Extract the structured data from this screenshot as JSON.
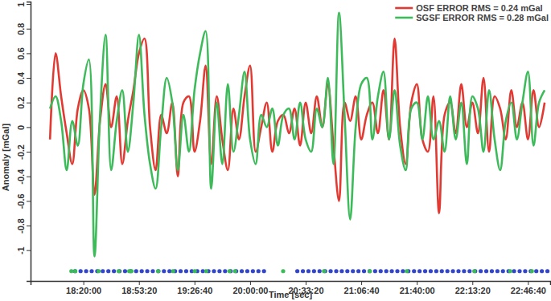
{
  "chart_data": {
    "type": "line",
    "xlabel": "Time [sec]",
    "ylabel": "Anomaly [mGal]",
    "xlim": [
      64100,
      82800
    ],
    "xticks": [
      {
        "value": 66000,
        "label": "18:20:00"
      },
      {
        "value": 68000,
        "label": "18:53:20"
      },
      {
        "value": 70000,
        "label": "19:26:40"
      },
      {
        "value": 72000,
        "label": "20:00:00"
      },
      {
        "value": 74000,
        "label": "20:33:20"
      },
      {
        "value": 76000,
        "label": "21:06:40"
      },
      {
        "value": 78000,
        "label": "21:40:00"
      },
      {
        "value": 80000,
        "label": "22:13:20"
      },
      {
        "value": 82000,
        "label": "22:46:40"
      }
    ],
    "ylim": [
      -1.25,
      1.02
    ],
    "yticks": [
      -1,
      -0.8,
      -0.6,
      -0.4,
      -0.2,
      0,
      0.2,
      0.4,
      0.6,
      0.8,
      1
    ],
    "grid": false,
    "legend": "top-right",
    "x": [
      64800,
      65000,
      65200,
      65400,
      65600,
      65800,
      66000,
      66200,
      66400,
      66600,
      66800,
      67000,
      67200,
      67400,
      67600,
      67800,
      68000,
      68200,
      68400,
      68600,
      68800,
      69000,
      69200,
      69400,
      69600,
      69800,
      70000,
      70200,
      70400,
      70600,
      70800,
      71000,
      71200,
      71400,
      71600,
      71800,
      72000,
      72200,
      72400,
      72600,
      72800,
      73000,
      73200,
      73400,
      73600,
      73800,
      74000,
      74200,
      74400,
      74600,
      74800,
      75000,
      75200,
      75400,
      75600,
      75800,
      76000,
      76200,
      76400,
      76600,
      76800,
      77000,
      77200,
      77400,
      77600,
      77800,
      78000,
      78200,
      78400,
      78600,
      78800,
      79000,
      79200,
      79400,
      79600,
      79800,
      80000,
      80200,
      80400,
      80600,
      80800,
      81000,
      81200,
      81400,
      81600,
      81800,
      82000,
      82200,
      82400,
      82600
    ],
    "series": [
      {
        "name": "OSF ERROR RMS = 0.24 mGal",
        "color": "#e23a32",
        "line_style": "solid",
        "values": [
          -0.1,
          0.6,
          0.25,
          -0.05,
          -0.3,
          0.15,
          0.3,
          0.15,
          -0.55,
          0.05,
          0.35,
          0,
          0.25,
          -0.3,
          0.05,
          0.3,
          0.6,
          0.72,
          0,
          -0.35,
          0.1,
          -0.05,
          0.2,
          -0.4,
          0.2,
          0.25,
          -0.2,
          0.05,
          0.5,
          -0.3,
          0.25,
          -0.1,
          -0.35,
          0.15,
          -0.1,
          0.25,
          0.5,
          -0.2,
          0,
          0.2,
          -0.2,
          0.05,
          0.1,
          -0.05,
          0.15,
          -0.15,
          0.2,
          -0.05,
          0.25,
          0,
          0.35,
          -0.15,
          -0.6,
          0.2,
          0.05,
          0.25,
          -0.1,
          0.1,
          0.2,
          -0.05,
          0.3,
          -0.1,
          0.72,
          0,
          -0.3,
          0.2,
          0.35,
          -0.1,
          -0.2,
          0.25,
          -0.7,
          0.1,
          0.2,
          -0.05,
          0.35,
          0,
          0.2,
          -0.05,
          0.4,
          -0.2,
          0.25,
          0.15,
          -0.1,
          0.3,
          0,
          0.2,
          -0.1,
          0.3,
          0,
          0.2
        ]
      },
      {
        "name": "SGSF ERROR RMS = 0.28 mGal",
        "color": "#3dbb5a",
        "line_style": "solid",
        "values": [
          0.15,
          0.25,
          0.05,
          -0.35,
          0.05,
          -0.15,
          0.35,
          0.55,
          -1.05,
          0.1,
          0.75,
          -0.35,
          0.05,
          0.3,
          -0.2,
          0.2,
          0.75,
          0.1,
          -0.3,
          -0.5,
          0,
          0.4,
          0.2,
          -0.35,
          0.1,
          -0.2,
          0.3,
          0.6,
          0.78,
          -0.5,
          0.2,
          -0.3,
          0.35,
          -0.2,
          0.1,
          0.45,
          -0.1,
          -0.3,
          0.1,
          0,
          0.15,
          -0.15,
          0.1,
          0.15,
          -0.1,
          0.2,
          -0.1,
          -0.2,
          0.15,
          0,
          0.4,
          -0.3,
          0.93,
          0.1,
          -0.75,
          0,
          0.35,
          0.4,
          -0.1,
          0.25,
          0.45,
          -0.1,
          0.3,
          -0.15,
          -0.35,
          0.15,
          0.2,
          -0.1,
          0.25,
          -0.1,
          0.05,
          -0.2,
          0.25,
          -0.1,
          0.2,
          -0.3,
          0.25,
          0.15,
          -0.2,
          0.3,
          -0.1,
          -0.35,
          0.05,
          0.2,
          -0.1,
          0.2,
          0.45,
          -0.15,
          0.2,
          0.3
        ]
      },
      {
        "type": "scatter",
        "color": "#3346c8",
        "marker": "circle",
        "x": [
          65700,
          65900,
          66100,
          66300,
          66500,
          66700,
          66900,
          67100,
          67300,
          67500,
          67700,
          67900,
          68100,
          68300,
          68500,
          68700,
          68900,
          69100,
          69300,
          69500,
          69700,
          69900,
          70100,
          70300,
          70500,
          70700,
          70900,
          71100,
          71300,
          71500,
          71700,
          71900,
          72100,
          72300,
          72500,
          73700,
          73900,
          74100,
          74300,
          74500,
          74700,
          74900,
          75100,
          75300,
          75500,
          75700,
          75900,
          76100,
          76300,
          76500,
          76700,
          76900,
          77100,
          77300,
          77500,
          77700,
          77900,
          78100,
          78300,
          78500,
          78700,
          78900,
          79100,
          79300,
          79500,
          79700,
          79900,
          80100,
          80300,
          80500,
          80700,
          80900,
          81100,
          81300,
          81500,
          81700,
          81900,
          82100,
          82300,
          82500,
          82700
        ],
        "values": [
          -1.17,
          -1.17,
          -1.17,
          -1.17,
          -1.17,
          -1.17,
          -1.17,
          -1.17,
          -1.17,
          -1.17,
          -1.17,
          -1.17,
          -1.17,
          -1.17,
          -1.17,
          -1.17,
          -1.17,
          -1.17,
          -1.17,
          -1.17,
          -1.17,
          -1.17,
          -1.17,
          -1.17,
          -1.17,
          -1.17,
          -1.17,
          -1.17,
          -1.17,
          -1.17,
          -1.17,
          -1.17,
          -1.17,
          -1.17,
          -1.17,
          -1.17,
          -1.17,
          -1.17,
          -1.17,
          -1.17,
          -1.17,
          -1.17,
          -1.17,
          -1.17,
          -1.17,
          -1.17,
          -1.17,
          -1.17,
          -1.17,
          -1.17,
          -1.17,
          -1.17,
          -1.17,
          -1.17,
          -1.17,
          -1.17,
          -1.17,
          -1.17,
          -1.17,
          -1.17,
          -1.17,
          -1.17,
          -1.17,
          -1.17,
          -1.17,
          -1.17,
          -1.17,
          -1.17,
          -1.17,
          -1.17,
          -1.17,
          -1.17,
          -1.17,
          -1.17,
          -1.17,
          -1.17,
          -1.17,
          -1.17,
          -1.17,
          -1.17,
          -1.17
        ]
      },
      {
        "type": "scatter",
        "color": "#3dbb5a",
        "marker": "circle",
        "x": [
          65570,
          65710,
          66550,
          67270,
          67650,
          67730,
          68690,
          69230,
          70010,
          70420,
          71260,
          71460,
          73190,
          74660,
          76310,
          77640,
          80070,
          81360,
          82140
        ],
        "values": [
          -1.17,
          -1.17,
          -1.17,
          -1.17,
          -1.17,
          -1.17,
          -1.17,
          -1.17,
          -1.17,
          -1.17,
          -1.17,
          -1.17,
          -1.17,
          -1.17,
          -1.17,
          -1.17,
          -1.17,
          -1.17,
          -1.17
        ]
      }
    ]
  }
}
